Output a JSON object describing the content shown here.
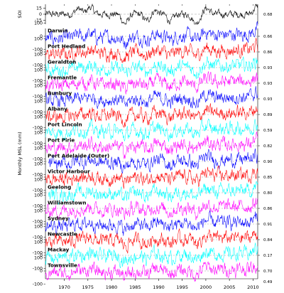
{
  "chart_data": {
    "type": "line",
    "xlim": [
      1966,
      2011
    ],
    "x_ticks": [
      1970,
      1975,
      1980,
      1985,
      1990,
      1995,
      2000,
      2005,
      2010
    ],
    "ylabel": "Monthly MSL (mm)",
    "soi_panel": {
      "ylabel": "SOI",
      "y_ticks": [
        15,
        0,
        -15
      ],
      "color": "#000000",
      "ylim": [
        -25,
        25
      ],
      "correlation_label": "0.68",
      "key_points": [
        {
          "x": 1973.0,
          "y": 14
        },
        {
          "x": 1975.5,
          "y": 18
        },
        {
          "x": 1982.9,
          "y": -24
        },
        {
          "x": 1987.5,
          "y": -17
        },
        {
          "x": 1989.2,
          "y": 10
        },
        {
          "x": 1992.5,
          "y": -18
        },
        {
          "x": 1997.9,
          "y": -24
        },
        {
          "x": 2000.2,
          "y": 15
        },
        {
          "x": 2010.8,
          "y": 20
        }
      ]
    },
    "msl_y_ticks": [
      100,
      0,
      -100
    ],
    "msl_ylim": [
      -150,
      150
    ],
    "series": [
      {
        "name": "Darwin",
        "color": "#0000ff",
        "correlation": "0.66"
      },
      {
        "name": "Port Hedland",
        "color": "#ff0000",
        "correlation": "0.86"
      },
      {
        "name": "Geraldton",
        "color": "#00ffff",
        "correlation": "0.93"
      },
      {
        "name": "Fremantle",
        "color": "#ff00ff",
        "correlation": "0.93"
      },
      {
        "name": "Bunbury",
        "color": "#0000ff",
        "correlation": "0.93"
      },
      {
        "name": "Albany",
        "color": "#ff0000",
        "correlation": "0.89"
      },
      {
        "name": "Port Lincoln",
        "color": "#00ffff",
        "correlation": "0.59"
      },
      {
        "name": "Port Pirie",
        "color": "#ff00ff",
        "correlation": "0.82"
      },
      {
        "name": "Port Adelaide (Outer)",
        "color": "#0000ff",
        "correlation": "0.90"
      },
      {
        "name": "Victor Harbour",
        "color": "#ff0000",
        "correlation": "0.85"
      },
      {
        "name": "Geelong",
        "color": "#00ffff",
        "correlation": "0.80"
      },
      {
        "name": "Williamstown",
        "color": "#ff00ff",
        "correlation": "0.86"
      },
      {
        "name": "Sydney",
        "color": "#0000ff",
        "correlation": "0.91"
      },
      {
        "name": "Newcastle",
        "color": "#ff0000",
        "correlation": "0.84"
      },
      {
        "name": "Mackay",
        "color": "#00ffff",
        "correlation": "0.17"
      },
      {
        "name": "Townsville",
        "color": "#ff00ff",
        "correlation": "0.70"
      }
    ],
    "extra_right_label": "0.49",
    "grid": false,
    "legend": "none"
  }
}
